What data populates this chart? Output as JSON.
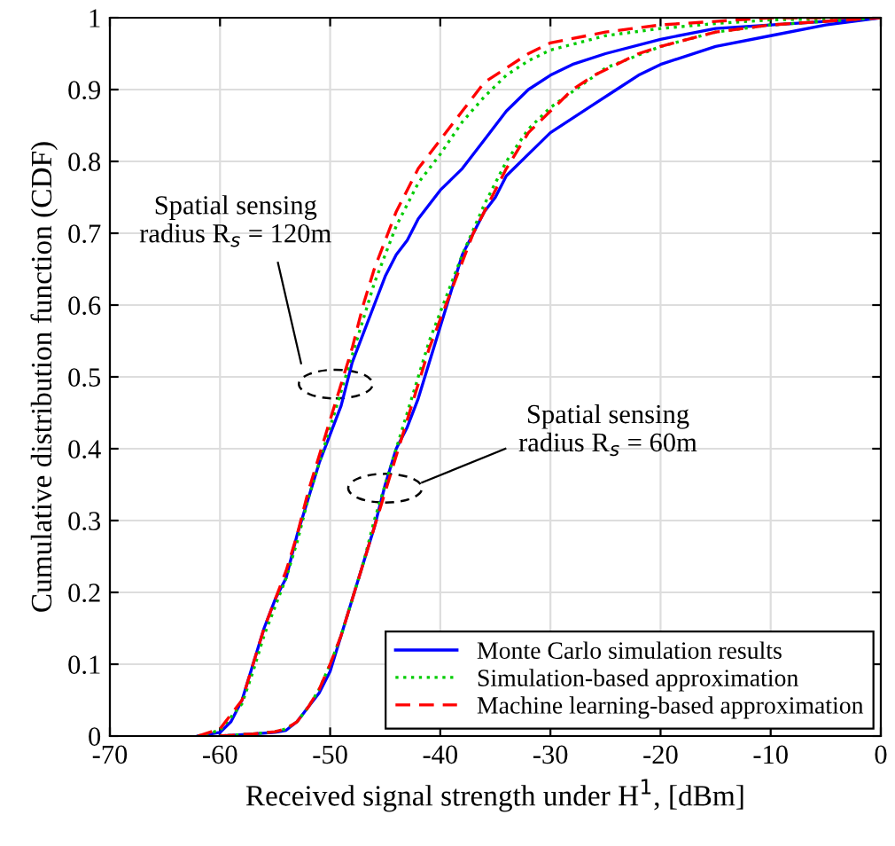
{
  "chart_data": {
    "type": "line",
    "xlabel": "Received signal strength under H$^{1}$, [dBm]",
    "ylabel": "Cumulative distribution function (CDF)",
    "xlim": [
      -70,
      0
    ],
    "xticks": [
      -70,
      -60,
      -50,
      -40,
      -30,
      -20,
      -10,
      0
    ],
    "ylim": [
      0,
      1
    ],
    "yticks": [
      0,
      0.1,
      0.2,
      0.3,
      0.4,
      0.5,
      0.6,
      0.7,
      0.8,
      0.9,
      1
    ],
    "grid": true,
    "legend": "bottom right",
    "marker": "none",
    "annotations": [
      "Spatial sensing\nradius R$_{s}$ = 120m",
      "Spatial sensing\nradius R$_{s}$ = 60m"
    ],
    "series": [
      {
        "name": "Monte Carlo simulation results",
        "color": "#0000ff",
        "line_style": "solid",
        "x": [
          -62,
          -60,
          -59,
          -58,
          -57,
          -56,
          -55,
          -54,
          -53,
          -52,
          -51,
          -50,
          -49,
          -48,
          -47,
          -46,
          -45,
          -44,
          -43,
          -42,
          -40,
          -38,
          -36,
          -34,
          -32,
          -30,
          -28,
          -25,
          -20,
          -15,
          -10,
          -5,
          0
        ],
        "values": [
          0,
          0.005,
          0.02,
          0.05,
          0.1,
          0.15,
          0.19,
          0.22,
          0.28,
          0.33,
          0.38,
          0.42,
          0.46,
          0.52,
          0.56,
          0.6,
          0.64,
          0.67,
          0.69,
          0.72,
          0.76,
          0.79,
          0.83,
          0.87,
          0.9,
          0.92,
          0.935,
          0.95,
          0.97,
          0.985,
          0.99,
          0.995,
          1
        ]
      },
      {
        "name": "Simulation-based approximation",
        "color": "#00cc00",
        "line_style": "dotted",
        "x": [
          -62,
          -60,
          -58,
          -57,
          -56,
          -55,
          -54,
          -53,
          -52,
          -51,
          -50,
          -49,
          -48,
          -47,
          -46,
          -45,
          -44,
          -42,
          -40,
          -38,
          -36,
          -34,
          -32,
          -30,
          -25,
          -20,
          -15,
          -10,
          0
        ],
        "values": [
          0,
          0.008,
          0.045,
          0.09,
          0.14,
          0.18,
          0.22,
          0.27,
          0.33,
          0.38,
          0.43,
          0.48,
          0.53,
          0.58,
          0.63,
          0.67,
          0.71,
          0.77,
          0.81,
          0.855,
          0.89,
          0.92,
          0.94,
          0.955,
          0.975,
          0.985,
          0.992,
          0.997,
          1
        ]
      },
      {
        "name": "Machine learning-based approximation",
        "color": "#ff0000",
        "line_style": "dashed",
        "x": [
          -62,
          -60,
          -58,
          -57,
          -56,
          -55,
          -54,
          -53,
          -52,
          -51,
          -50,
          -49,
          -48,
          -47,
          -46,
          -45,
          -44,
          -42,
          -40,
          -38,
          -36,
          -34,
          -32,
          -30,
          -25,
          -20,
          -15,
          -10,
          0
        ],
        "values": [
          0,
          0.01,
          0.05,
          0.1,
          0.15,
          0.19,
          0.23,
          0.28,
          0.34,
          0.39,
          0.44,
          0.49,
          0.54,
          0.6,
          0.65,
          0.69,
          0.73,
          0.79,
          0.83,
          0.87,
          0.91,
          0.93,
          0.95,
          0.965,
          0.98,
          0.99,
          0.995,
          1,
          1
        ]
      },
      {
        "color": "#0000ff",
        "line_style": "solid",
        "x": [
          -60,
          -57,
          -55,
          -54,
          -53,
          -52,
          -51,
          -50,
          -49,
          -48,
          -47,
          -46,
          -45,
          -44,
          -43,
          -42,
          -41,
          -40,
          -39,
          -38,
          -37,
          -36,
          -35,
          -34,
          -32,
          -30,
          -28,
          -26,
          -24,
          -22,
          -20,
          -15,
          -10,
          -5,
          0
        ],
        "values": [
          0,
          0.003,
          0.005,
          0.008,
          0.02,
          0.04,
          0.06,
          0.09,
          0.14,
          0.19,
          0.24,
          0.29,
          0.35,
          0.4,
          0.43,
          0.47,
          0.52,
          0.57,
          0.62,
          0.67,
          0.7,
          0.73,
          0.75,
          0.78,
          0.81,
          0.84,
          0.86,
          0.88,
          0.9,
          0.92,
          0.935,
          0.96,
          0.975,
          0.99,
          1
        ]
      },
      {
        "color": "#00cc00",
        "line_style": "dotted",
        "x": [
          -60,
          -57,
          -55,
          -54,
          -53,
          -52,
          -51,
          -50,
          -49,
          -48,
          -47,
          -46,
          -45,
          -44,
          -43,
          -42,
          -41,
          -40,
          -39,
          -38,
          -36,
          -34,
          -32,
          -30,
          -25,
          -20,
          -15,
          -10,
          0
        ],
        "values": [
          0,
          0.003,
          0.006,
          0.01,
          0.02,
          0.04,
          0.065,
          0.1,
          0.14,
          0.19,
          0.24,
          0.3,
          0.35,
          0.4,
          0.45,
          0.5,
          0.55,
          0.59,
          0.63,
          0.67,
          0.74,
          0.8,
          0.845,
          0.875,
          0.93,
          0.96,
          0.98,
          0.99,
          1
        ]
      },
      {
        "color": "#ff0000",
        "line_style": "dashed",
        "x": [
          -60,
          -57,
          -55,
          -54,
          -53,
          -52,
          -51,
          -50,
          -49,
          -48,
          -47,
          -46,
          -45,
          -44,
          -43,
          -42,
          -41,
          -40,
          -39,
          -38,
          -37,
          -36,
          -35,
          -34,
          -32,
          -30,
          -28,
          -26,
          -24,
          -22,
          -20,
          -15,
          -10,
          0
        ],
        "values": [
          0,
          0.003,
          0.006,
          0.01,
          0.02,
          0.04,
          0.065,
          0.1,
          0.14,
          0.19,
          0.24,
          0.29,
          0.34,
          0.39,
          0.44,
          0.49,
          0.54,
          0.58,
          0.62,
          0.66,
          0.7,
          0.73,
          0.76,
          0.79,
          0.84,
          0.87,
          0.9,
          0.92,
          0.935,
          0.95,
          0.96,
          0.98,
          0.99,
          1
        ]
      }
    ]
  }
}
